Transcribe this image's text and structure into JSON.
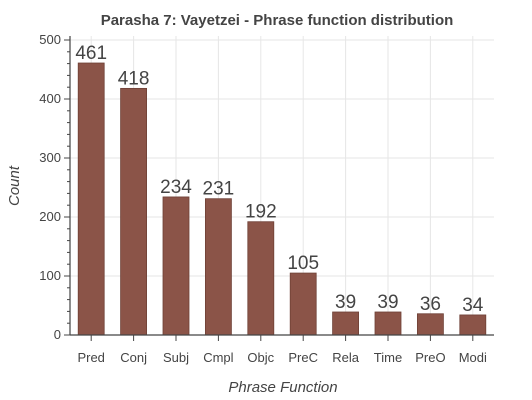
{
  "chart_data": {
    "type": "bar",
    "title": "Parasha 7: Vayetzei - Phrase function distribution",
    "xlabel": "Phrase Function",
    "ylabel": "Count",
    "categories": [
      "Pred",
      "Conj",
      "Subj",
      "Cmpl",
      "Objc",
      "PreC",
      "Rela",
      "Time",
      "PreO",
      "Modi"
    ],
    "values": [
      461,
      418,
      234,
      231,
      192,
      105,
      39,
      39,
      36,
      34
    ],
    "ylim": [
      0,
      500
    ],
    "yticks": [
      0,
      100,
      200,
      300,
      400,
      500
    ],
    "grid": true,
    "legend": "none",
    "colors": {
      "bar": "#8b5448",
      "bar_edge": "#6e4036",
      "grid": "#e6e6e6",
      "axis": "#444444",
      "text": "#444444"
    }
  }
}
